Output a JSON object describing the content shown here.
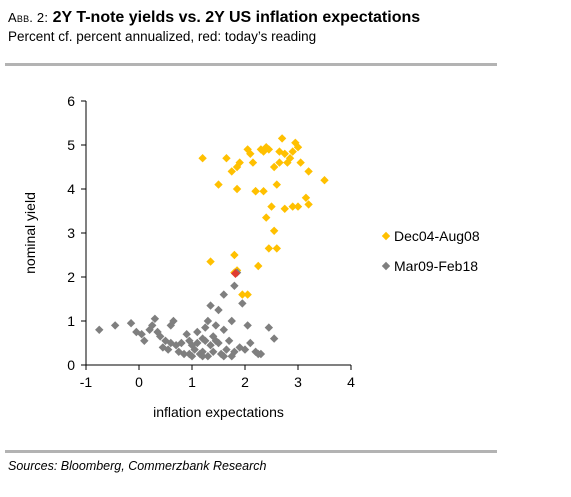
{
  "header": {
    "prefix": "Abb. 2:",
    "title": "2Y T-note yields vs. 2Y US inflation expectations",
    "subtitle": "Percent cf. percent annualized, red: today’s reading"
  },
  "source": "Sources: Bloomberg, Commerzbank Research",
  "colors": {
    "series1": "#FFC000",
    "series2": "#7F7F7F",
    "today": "#E03C31"
  },
  "chart_data": {
    "type": "scatter",
    "xlabel": "inflation expectations",
    "ylabel": "nominal yield",
    "xlim": [
      -1,
      4
    ],
    "ylim": [
      0,
      6
    ],
    "xticks": [
      "-1",
      "0",
      "1",
      "2",
      "3",
      "4"
    ],
    "yticks": [
      "0",
      "1",
      "2",
      "3",
      "4",
      "5",
      "6"
    ],
    "grid": false,
    "legend_position": "right",
    "series": [
      {
        "name": "Dec04-Aug08",
        "points": [
          [
            1.2,
            4.7
          ],
          [
            1.5,
            4.1
          ],
          [
            1.65,
            4.7
          ],
          [
            1.75,
            4.4
          ],
          [
            1.85,
            4.5
          ],
          [
            1.9,
            4.6
          ],
          [
            1.85,
            4.0
          ],
          [
            2.05,
            4.9
          ],
          [
            2.1,
            4.8
          ],
          [
            2.15,
            4.6
          ],
          [
            2.2,
            3.95
          ],
          [
            2.3,
            4.9
          ],
          [
            2.35,
            4.85
          ],
          [
            2.4,
            4.95
          ],
          [
            2.45,
            4.9
          ],
          [
            2.55,
            4.5
          ],
          [
            2.6,
            4.1
          ],
          [
            2.65,
            4.85
          ],
          [
            2.65,
            4.6
          ],
          [
            2.7,
            5.15
          ],
          [
            2.75,
            4.8
          ],
          [
            2.8,
            4.6
          ],
          [
            2.85,
            4.7
          ],
          [
            2.9,
            4.85
          ],
          [
            2.95,
            5.05
          ],
          [
            3.0,
            4.95
          ],
          [
            3.05,
            4.6
          ],
          [
            3.15,
            3.8
          ],
          [
            3.2,
            3.65
          ],
          [
            3.2,
            4.4
          ],
          [
            3.5,
            4.2
          ],
          [
            2.5,
            3.6
          ],
          [
            2.4,
            3.35
          ],
          [
            2.55,
            3.05
          ],
          [
            2.45,
            2.65
          ],
          [
            2.6,
            2.65
          ],
          [
            2.75,
            3.55
          ],
          [
            2.9,
            3.6
          ],
          [
            3.0,
            3.6
          ],
          [
            2.2,
            3.95
          ],
          [
            2.35,
            3.95
          ],
          [
            1.8,
            2.5
          ],
          [
            1.85,
            2.15
          ],
          [
            1.8,
            2.1
          ],
          [
            1.95,
            1.6
          ],
          [
            2.05,
            1.6
          ],
          [
            2.25,
            2.25
          ],
          [
            1.35,
            2.35
          ]
        ]
      },
      {
        "name": "Mar09-Feb18",
        "points": [
          [
            -0.75,
            0.8
          ],
          [
            -0.45,
            0.9
          ],
          [
            -0.15,
            0.95
          ],
          [
            -0.05,
            0.75
          ],
          [
            0.05,
            0.7
          ],
          [
            0.1,
            0.55
          ],
          [
            0.2,
            0.8
          ],
          [
            0.25,
            0.9
          ],
          [
            0.3,
            1.05
          ],
          [
            0.35,
            0.75
          ],
          [
            0.4,
            0.65
          ],
          [
            0.45,
            0.4
          ],
          [
            0.5,
            0.55
          ],
          [
            0.55,
            0.35
          ],
          [
            0.6,
            0.5
          ],
          [
            0.6,
            0.9
          ],
          [
            0.65,
            1.0
          ],
          [
            0.7,
            0.45
          ],
          [
            0.75,
            0.3
          ],
          [
            0.8,
            0.5
          ],
          [
            0.85,
            0.25
          ],
          [
            0.9,
            0.7
          ],
          [
            0.95,
            0.55
          ],
          [
            1.0,
            0.45
          ],
          [
            1.0,
            0.2
          ],
          [
            1.05,
            0.35
          ],
          [
            1.1,
            0.5
          ],
          [
            1.1,
            0.75
          ],
          [
            1.15,
            0.25
          ],
          [
            1.2,
            0.6
          ],
          [
            1.2,
            0.3
          ],
          [
            1.25,
            0.85
          ],
          [
            1.3,
            1.0
          ],
          [
            1.3,
            0.2
          ],
          [
            1.35,
            0.45
          ],
          [
            1.35,
            1.35
          ],
          [
            1.4,
            0.65
          ],
          [
            1.4,
            0.3
          ],
          [
            1.45,
            0.9
          ],
          [
            1.5,
            0.5
          ],
          [
            1.5,
            1.25
          ],
          [
            1.55,
            0.25
          ],
          [
            1.6,
            0.8
          ],
          [
            1.6,
            1.6
          ],
          [
            1.65,
            0.35
          ],
          [
            1.7,
            0.55
          ],
          [
            1.75,
            1.0
          ],
          [
            1.8,
            0.3
          ],
          [
            1.8,
            1.8
          ],
          [
            1.85,
            2.1
          ],
          [
            1.9,
            0.4
          ],
          [
            1.95,
            1.4
          ],
          [
            2.0,
            0.35
          ],
          [
            2.05,
            0.9
          ],
          [
            2.1,
            0.5
          ],
          [
            2.2,
            0.3
          ],
          [
            2.25,
            0.25
          ],
          [
            2.3,
            0.25
          ],
          [
            2.45,
            0.85
          ],
          [
            2.55,
            0.6
          ],
          [
            1.2,
            0.2
          ],
          [
            0.95,
            0.25
          ],
          [
            1.6,
            0.2
          ],
          [
            1.45,
            0.55
          ],
          [
            1.25,
            0.55
          ],
          [
            1.75,
            0.2
          ]
        ]
      }
    ],
    "today": [
      1.82,
      2.08
    ]
  }
}
